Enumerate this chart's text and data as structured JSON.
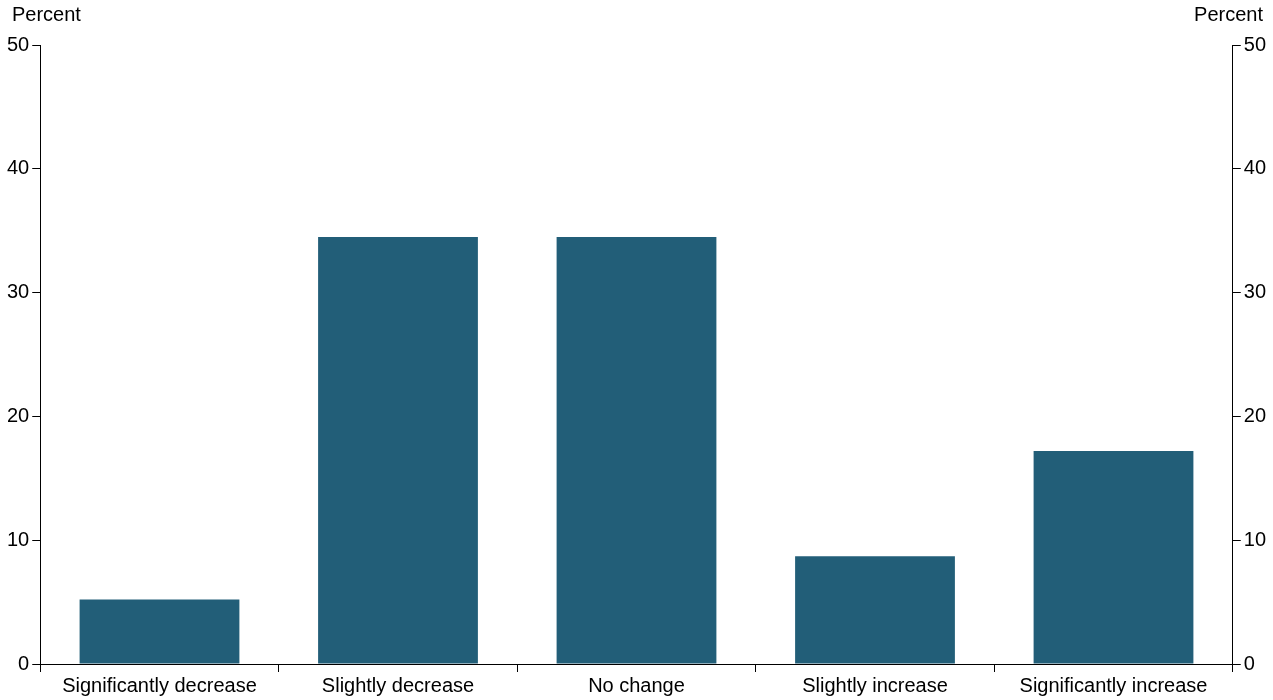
{
  "chart_data": {
    "type": "bar",
    "ylabel": "Percent",
    "y2label": "Percent",
    "categories": [
      "Significantly decrease",
      "Slightly decrease",
      "No change",
      "Slightly increase",
      "Significantly increase"
    ],
    "values": [
      5.2,
      34.5,
      34.5,
      8.7,
      17.2
    ],
    "color": "#225e78",
    "ylim": [
      0,
      50
    ],
    "yticks": [
      0,
      10,
      20,
      30,
      40,
      50
    ],
    "y2lim": [
      0,
      50
    ],
    "y2ticks": [
      0,
      10,
      20,
      30,
      40,
      50
    ],
    "grid": false,
    "legend": false
  }
}
